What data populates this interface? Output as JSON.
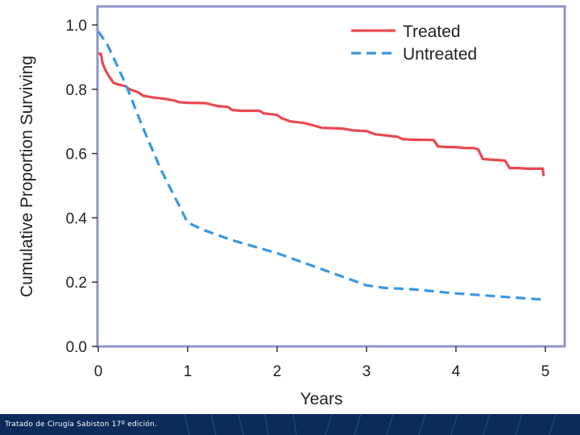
{
  "chart_data": {
    "type": "line",
    "xlabel": "Years",
    "ylabel": "Cumulative Proportion Surviving",
    "xlim": [
      0,
      5
    ],
    "ylim": [
      0,
      1.05
    ],
    "x_ticks": [
      "0",
      "1",
      "2",
      "3",
      "4",
      "5"
    ],
    "y_ticks": [
      "0.0",
      "0.2",
      "0.4",
      "0.6",
      "0.8",
      "1.0"
    ],
    "legend_position": "top-right",
    "grid": false,
    "series": [
      {
        "name": "Treated",
        "style": "solid",
        "color": "#e8494f",
        "points": [
          [
            0,
            0.91
          ],
          [
            0.03,
            0.91
          ],
          [
            0.05,
            0.88
          ],
          [
            0.08,
            0.86
          ],
          [
            0.12,
            0.84
          ],
          [
            0.17,
            0.82
          ],
          [
            0.22,
            0.815
          ],
          [
            0.3,
            0.81
          ],
          [
            0.35,
            0.8
          ],
          [
            0.45,
            0.79
          ],
          [
            0.5,
            0.78
          ],
          [
            0.6,
            0.775
          ],
          [
            0.75,
            0.77
          ],
          [
            0.85,
            0.765
          ],
          [
            0.9,
            0.76
          ],
          [
            1.0,
            0.758
          ],
          [
            1.2,
            0.757
          ],
          [
            1.3,
            0.75
          ],
          [
            1.35,
            0.747
          ],
          [
            1.45,
            0.745
          ],
          [
            1.5,
            0.735
          ],
          [
            1.6,
            0.733
          ],
          [
            1.8,
            0.733
          ],
          [
            1.85,
            0.725
          ],
          [
            2.0,
            0.72
          ],
          [
            2.05,
            0.71
          ],
          [
            2.15,
            0.7
          ],
          [
            2.3,
            0.695
          ],
          [
            2.4,
            0.688
          ],
          [
            2.5,
            0.68
          ],
          [
            2.7,
            0.678
          ],
          [
            2.75,
            0.677
          ],
          [
            2.85,
            0.672
          ],
          [
            3.0,
            0.67
          ],
          [
            3.1,
            0.66
          ],
          [
            3.2,
            0.657
          ],
          [
            3.35,
            0.652
          ],
          [
            3.4,
            0.645
          ],
          [
            3.5,
            0.643
          ],
          [
            3.75,
            0.642
          ],
          [
            3.8,
            0.622
          ],
          [
            3.9,
            0.62
          ],
          [
            4.0,
            0.62
          ],
          [
            4.1,
            0.617
          ],
          [
            4.2,
            0.617
          ],
          [
            4.25,
            0.612
          ],
          [
            4.3,
            0.583
          ],
          [
            4.45,
            0.58
          ],
          [
            4.55,
            0.578
          ],
          [
            4.6,
            0.555
          ],
          [
            4.7,
            0.555
          ],
          [
            4.8,
            0.553
          ],
          [
            4.97,
            0.553
          ],
          [
            4.98,
            0.53
          ]
        ]
      },
      {
        "name": "Untreated",
        "style": "dashed",
        "color": "#3a96e4",
        "points": [
          [
            0,
            0.98
          ],
          [
            0.1,
            0.94
          ],
          [
            0.3,
            0.82
          ],
          [
            0.5,
            0.68
          ],
          [
            0.7,
            0.55
          ],
          [
            0.9,
            0.44
          ],
          [
            1.0,
            0.385
          ],
          [
            1.2,
            0.36
          ],
          [
            1.5,
            0.33
          ],
          [
            2.0,
            0.29
          ],
          [
            2.5,
            0.24
          ],
          [
            3.0,
            0.19
          ],
          [
            3.2,
            0.182
          ],
          [
            3.5,
            0.178
          ],
          [
            4.0,
            0.165
          ],
          [
            4.5,
            0.155
          ],
          [
            5.0,
            0.145
          ]
        ]
      }
    ]
  },
  "footer": {
    "caption": "Tratado de Cirugía Sabiston 17º edición."
  }
}
